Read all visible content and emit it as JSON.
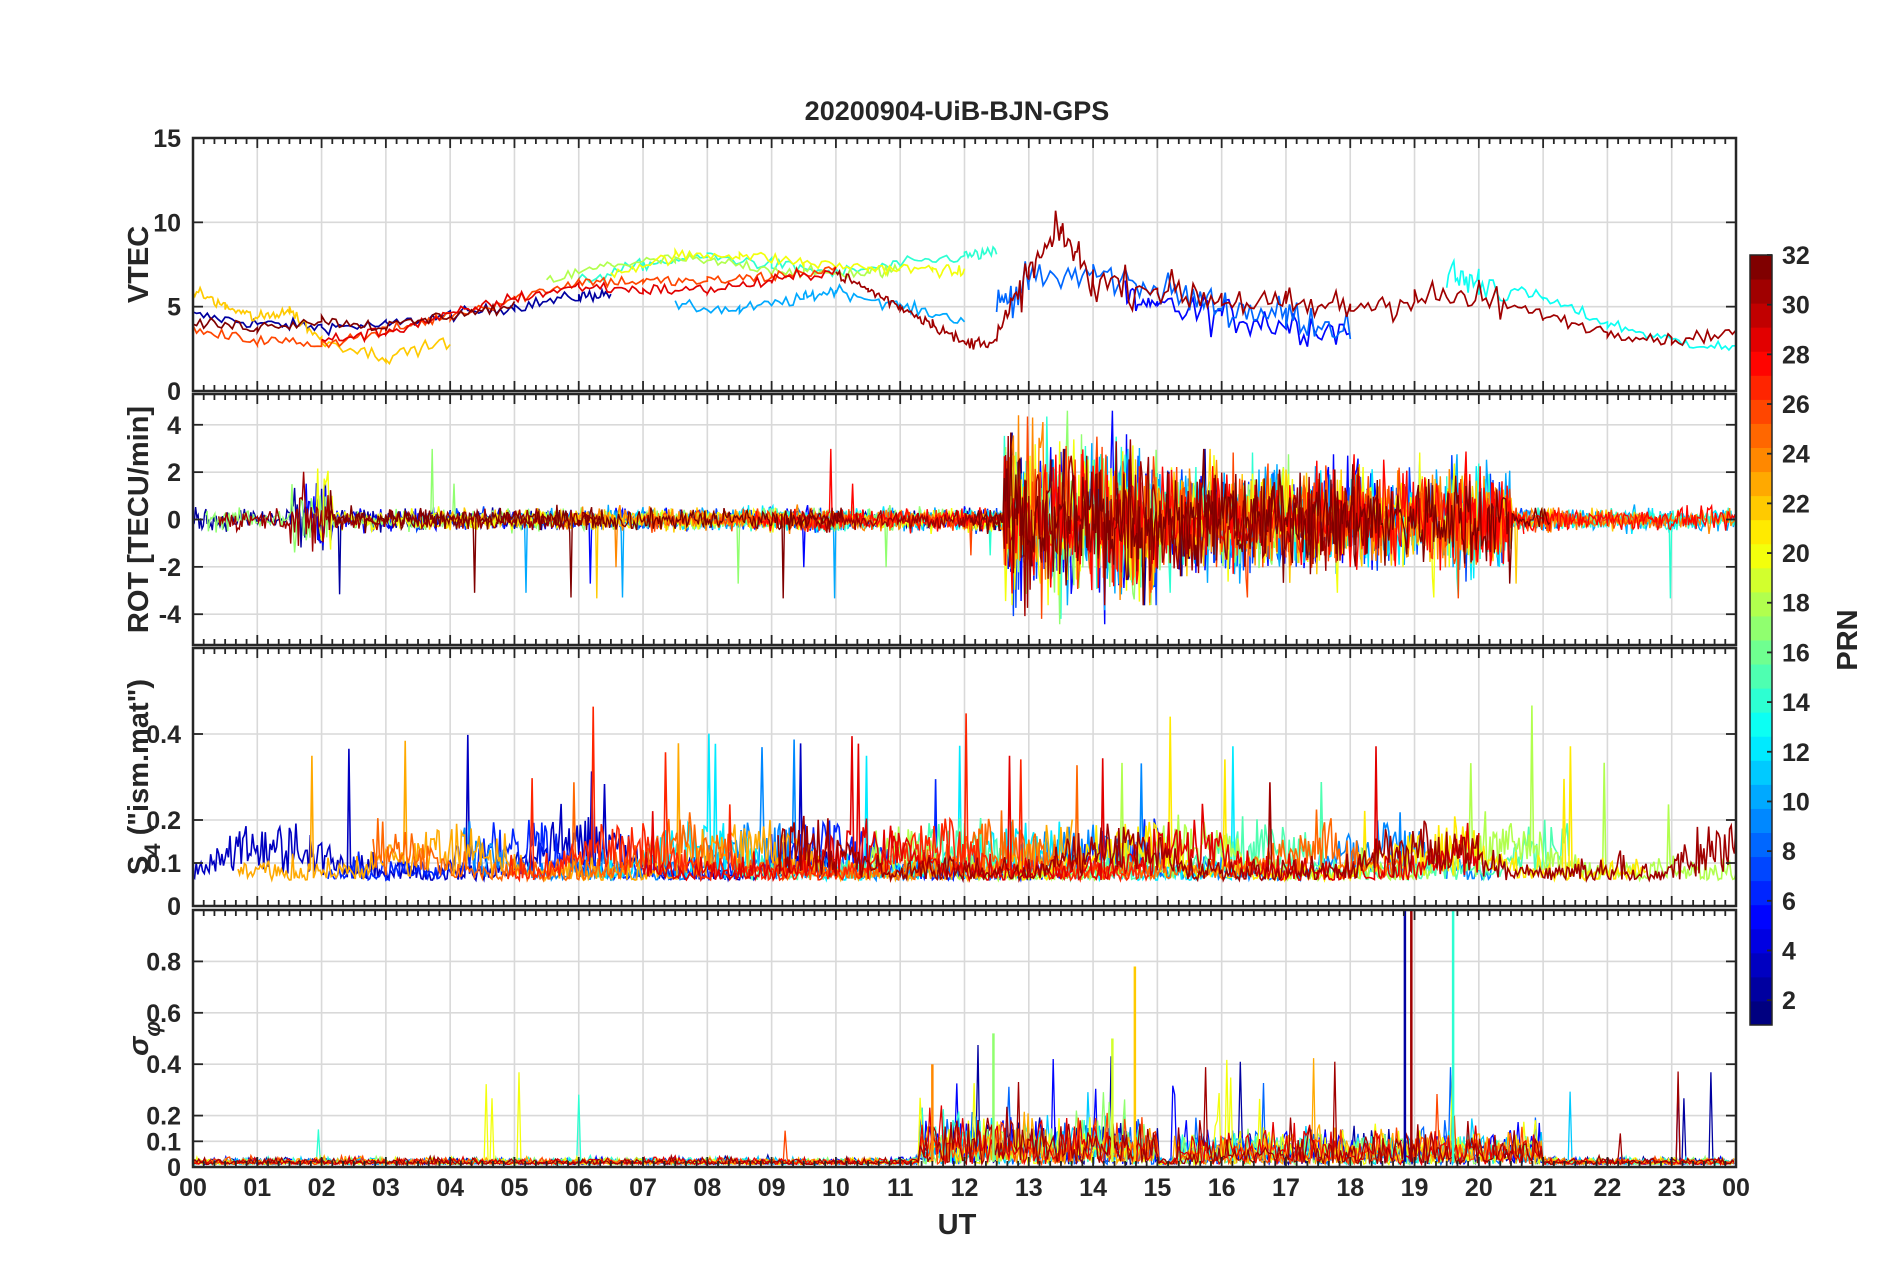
{
  "chart_data": {
    "title": "20200904-UiB-BJN-GPS",
    "xlabel": "UT",
    "x_tick_labels": [
      "00",
      "01",
      "02",
      "03",
      "04",
      "05",
      "06",
      "07",
      "08",
      "09",
      "10",
      "11",
      "12",
      "13",
      "14",
      "15",
      "16",
      "17",
      "18",
      "19",
      "20",
      "21",
      "22",
      "23",
      "00"
    ],
    "xlim_hours": [
      0,
      24
    ],
    "colorbar": {
      "label": "PRN",
      "range": [
        1,
        32
      ],
      "ticks": [
        "2",
        "4",
        "6",
        "8",
        "10",
        "12",
        "14",
        "16",
        "18",
        "20",
        "22",
        "24",
        "26",
        "28",
        "30",
        "32"
      ],
      "tick_values": [
        2,
        4,
        6,
        8,
        10,
        12,
        14,
        16,
        18,
        20,
        22,
        24,
        26,
        28,
        30,
        32
      ],
      "colormap": "jet (32 steps)"
    },
    "panels": [
      {
        "id": "vtec",
        "type": "line",
        "ylabel": "VTEC",
        "ylim": [
          0,
          15
        ],
        "yticks": [
          0,
          5,
          10,
          15
        ],
        "ytick_labels": [
          "0",
          "5",
          "10",
          "15"
        ],
        "series": [
          {
            "name": "PRN 2",
            "prn": 2,
            "x": [
              0.0,
              1.0,
              2.0,
              3.0,
              4.0,
              5.0,
              6.0,
              6.5
            ],
            "y": [
              4.5,
              4.0,
              3.8,
              3.9,
              4.5,
              5.0,
              5.6,
              5.8
            ]
          },
          {
            "name": "PRN 5",
            "prn": 5,
            "x": [
              14.5,
              15.0,
              16.0,
              17.0,
              18.0
            ],
            "y": [
              5.5,
              5.0,
              4.5,
              4.0,
              3.5
            ]
          },
          {
            "name": "PRN 8",
            "prn": 8,
            "x": [
              12.5,
              13.0,
              14.0,
              15.0,
              16.0,
              17.0,
              18.0
            ],
            "y": [
              5.0,
              6.5,
              7.0,
              6.0,
              5.0,
              4.5,
              3.8
            ]
          },
          {
            "name": "PRN 10",
            "prn": 10,
            "x": [
              7.5,
              8.5,
              9.5,
              10.0,
              11.0,
              12.0
            ],
            "y": [
              5.0,
              4.8,
              5.5,
              6.0,
              5.0,
              4.2
            ]
          },
          {
            "name": "PRN 13",
            "prn": 13,
            "x": [
              19.5,
              20.0,
              21.0,
              22.0,
              23.0,
              24.0
            ],
            "y": [
              6.8,
              6.5,
              5.5,
              4.0,
              3.0,
              2.5
            ]
          },
          {
            "name": "PRN 14",
            "prn": 14,
            "x": [
              6.0,
              7.0,
              8.0,
              9.0,
              10.0,
              11.0,
              12.0,
              12.5
            ],
            "y": [
              6.5,
              7.5,
              8.0,
              7.5,
              7.0,
              7.5,
              8.0,
              8.2
            ]
          },
          {
            "name": "PRN 18",
            "prn": 18,
            "x": [
              5.5,
              6.5,
              7.5,
              8.5,
              9.5,
              10.5,
              11.0
            ],
            "y": [
              6.5,
              7.5,
              7.8,
              7.5,
              7.0,
              7.0,
              7.2
            ]
          },
          {
            "name": "PRN 20",
            "prn": 20,
            "x": [
              6.5,
              7.5,
              8.5,
              9.5,
              10.5,
              11.5,
              12.0
            ],
            "y": [
              7.0,
              8.0,
              8.1,
              7.6,
              7.3,
              7.2,
              7.0
            ]
          },
          {
            "name": "PRN 22",
            "prn": 22,
            "x": [
              0.0,
              0.5,
              1.0,
              1.5,
              2.0,
              3.0,
              4.0
            ],
            "y": [
              6.0,
              5.0,
              4.3,
              4.8,
              3.0,
              2.0,
              3.0
            ]
          },
          {
            "name": "PRN 26",
            "prn": 26,
            "x": [
              0.0,
              1.0,
              2.0,
              3.0,
              4.0,
              5.0,
              6.0,
              7.0,
              8.0,
              9.0,
              10.0
            ],
            "y": [
              3.5,
              3.0,
              2.8,
              3.5,
              4.5,
              5.5,
              6.5,
              6.5,
              6.5,
              6.8,
              7.2
            ]
          },
          {
            "name": "PRN 29",
            "prn": 29,
            "x": [
              2.0,
              3.0,
              4.0,
              5.0,
              6.0,
              7.0,
              8.0,
              9.0,
              10.0
            ],
            "y": [
              3.0,
              3.5,
              4.5,
              5.5,
              6.2,
              6.0,
              6.0,
              6.5,
              7.2
            ]
          },
          {
            "name": "PRN 31",
            "prn": 31,
            "x": [
              10.0,
              10.5,
              11.0,
              11.5,
              12.0,
              12.5,
              13.0,
              13.5,
              14.0,
              15.0,
              16.0,
              17.0,
              18.0,
              19.0,
              20.0,
              21.0,
              22.0,
              23.0,
              24.0
            ],
            "y": [
              7.0,
              6.0,
              5.0,
              4.0,
              2.8,
              3.0,
              7.0,
              9.5,
              6.5,
              6.0,
              5.5,
              5.0,
              5.0,
              5.5,
              5.5,
              4.5,
              3.5,
              3.0,
              3.5
            ]
          },
          {
            "name": "PRN 32",
            "prn": 32,
            "x": [
              0.0,
              1.0,
              2.0,
              3.0,
              4.0,
              5.0
            ],
            "y": [
              4.0,
              3.8,
              4.2,
              3.8,
              4.5,
              5.0
            ]
          }
        ]
      },
      {
        "id": "rot",
        "type": "line",
        "ylabel": "ROT [TECU/min]",
        "ylim": [
          -5.3,
          5.3
        ],
        "yticks": [
          -4,
          -2,
          0,
          2,
          4
        ],
        "ytick_labels": [
          "-4",
          "-2",
          "0",
          "2",
          "4"
        ]
      },
      {
        "id": "s4",
        "type": "line",
        "ylabel": "S4 (\"ism.mat\")",
        "ylabel_parts": {
          "base": "S",
          "subscript": "4",
          "suffix": " (\"ism.mat\")"
        },
        "ylim": [
          0,
          0.6
        ],
        "yticks": [
          0,
          0.1,
          0.2,
          0.4
        ],
        "ytick_labels": [
          "0",
          "0.1",
          "0.2",
          "0.4"
        ]
      },
      {
        "id": "sigma_phi",
        "type": "line",
        "ylabel": "σφ",
        "ylabel_parts": {
          "base": "σ",
          "subscript": "φ"
        },
        "ylim": [
          0,
          1
        ],
        "yticks": [
          0,
          0.1,
          0.2,
          0.4,
          0.6,
          0.8
        ],
        "ytick_labels": [
          "0",
          "0.1",
          "0.2",
          "0.4",
          "0.6",
          "0.8"
        ],
        "spikes": [
          {
            "prn": 2,
            "x": 18.85,
            "y": 1.0
          },
          {
            "prn": 31,
            "x": 18.95,
            "y": 1.0
          },
          {
            "prn": 14,
            "x": 19.6,
            "y": 1.0
          },
          {
            "prn": 22,
            "x": 14.65,
            "y": 0.78
          },
          {
            "prn": 19,
            "x": 14.3,
            "y": 0.5
          },
          {
            "prn": 17,
            "x": 12.45,
            "y": 0.52
          },
          {
            "prn": 24,
            "x": 11.5,
            "y": 0.4
          }
        ]
      }
    ]
  }
}
